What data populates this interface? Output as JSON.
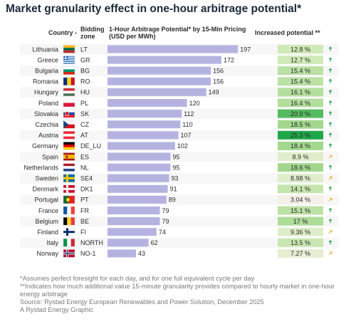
{
  "title": "Market granularity effect in one-hour arbitrage potential*",
  "chart_data": {
    "type": "bar",
    "orientation": "horizontal",
    "headers": {
      "country": "Country -",
      "zone": "Bidding zone",
      "bar": "1-Hour Arbitrage Potential* by 15-Min Pricing (USD per MWh)",
      "increase": "Increased potential **"
    },
    "rows": [
      {
        "country": "Lithuania",
        "flag": "flag-lithuania",
        "zone": "LT",
        "value": 197,
        "increase": "12.8 %",
        "increase_pct": 12.8
      },
      {
        "country": "Greece",
        "flag": "flag-greece",
        "zone": "GR",
        "value": 172,
        "increase": "12.7 %",
        "increase_pct": 12.7
      },
      {
        "country": "Bulgaria",
        "flag": "flag-bulgaria",
        "zone": "BG",
        "value": 156,
        "increase": "15.4 %",
        "increase_pct": 15.4
      },
      {
        "country": "Romania",
        "flag": "flag-romania",
        "zone": "RO",
        "value": 156,
        "increase": "15.4 %",
        "increase_pct": 15.4
      },
      {
        "country": "Hungary",
        "flag": "flag-hungary",
        "zone": "HU",
        "value": 149,
        "increase": "16.1 %",
        "increase_pct": 16.1
      },
      {
        "country": "Poland",
        "flag": "flag-poland",
        "zone": "PL",
        "value": 120,
        "increase": "16.4 %",
        "increase_pct": 16.4
      },
      {
        "country": "Slovakia",
        "flag": "flag-slovakia",
        "zone": "SK",
        "value": 112,
        "increase": "20.9 %",
        "increase_pct": 20.9
      },
      {
        "country": "Czechia",
        "flag": "flag-czechia",
        "zone": "CZ",
        "value": 110,
        "increase": "18.5 %",
        "increase_pct": 18.5
      },
      {
        "country": "Austria",
        "flag": "flag-austria",
        "zone": "AT",
        "value": 107,
        "increase": "25.3 %",
        "increase_pct": 25.3
      },
      {
        "country": "Germany",
        "flag": "flag-germany",
        "zone": "DE_LU",
        "value": 102,
        "increase": "18.4 %",
        "increase_pct": 18.4
      },
      {
        "country": "Spain",
        "flag": "flag-spain",
        "zone": "ES",
        "value": 95,
        "increase": "8.9 %",
        "increase_pct": 8.9
      },
      {
        "country": "Netherlands",
        "flag": "flag-netherlands",
        "zone": "NL",
        "value": 95,
        "increase": "18.6 %",
        "increase_pct": 18.6
      },
      {
        "country": "Sweden",
        "flag": "flag-sweden",
        "zone": "SE4",
        "value": 93,
        "increase": "8.98 %",
        "increase_pct": 8.98
      },
      {
        "country": "Denmark",
        "flag": "flag-denmark",
        "zone": "DK1",
        "value": 91,
        "increase": "14.1 %",
        "increase_pct": 14.1
      },
      {
        "country": "Portugal",
        "flag": "flag-portugal",
        "zone": "PT",
        "value": 89,
        "increase": "3.04 %",
        "increase_pct": 3.04
      },
      {
        "country": "France",
        "flag": "flag-france",
        "zone": "FR",
        "value": 79,
        "increase": "15.1 %",
        "increase_pct": 15.1
      },
      {
        "country": "Belgium",
        "flag": "flag-belgium",
        "zone": "BE",
        "value": 79,
        "increase": "17 %",
        "increase_pct": 17
      },
      {
        "country": "Finland",
        "flag": "flag-finland",
        "zone": "FI",
        "value": 74,
        "increase": "9.36 %",
        "increase_pct": 9.36
      },
      {
        "country": "Italy",
        "flag": "flag-italy",
        "zone": "NORTH",
        "value": 62,
        "increase": "13.5 %",
        "increase_pct": 13.5
      },
      {
        "country": "Norway",
        "flag": "flag-norway",
        "zone": "NO-1",
        "value": 43,
        "increase": "7.27 %",
        "increase_pct": 7.27
      }
    ],
    "colors": {
      "bar": "#b4b3e0",
      "heat_low": "#f4efe7",
      "heat_mid": "#d5ecbd",
      "heat_high": "#1fa84a",
      "arrow_up": "#1d9e4e",
      "arrow_flat": "#f2b134"
    }
  },
  "footnotes": [
    "*Assumes perfect foresight for each day, and for one full equivalent cycle per day",
    "**Indicates how much additional value 15-minute granularity provides compared to hourly market in one-hour energy arbitrage",
    "Source: Rystad Energy European Renewables and Power Solution, December 2025",
    "A Rystad Energy Graphic"
  ]
}
